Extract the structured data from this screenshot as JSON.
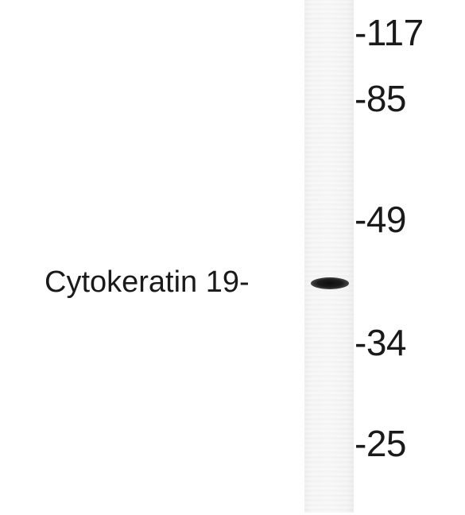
{
  "markers": {
    "m117": "-117",
    "m85": "-85",
    "m49": "-49",
    "m34": "-34",
    "m25": "-25"
  },
  "protein_label": "Cytokeratin 19-"
}
